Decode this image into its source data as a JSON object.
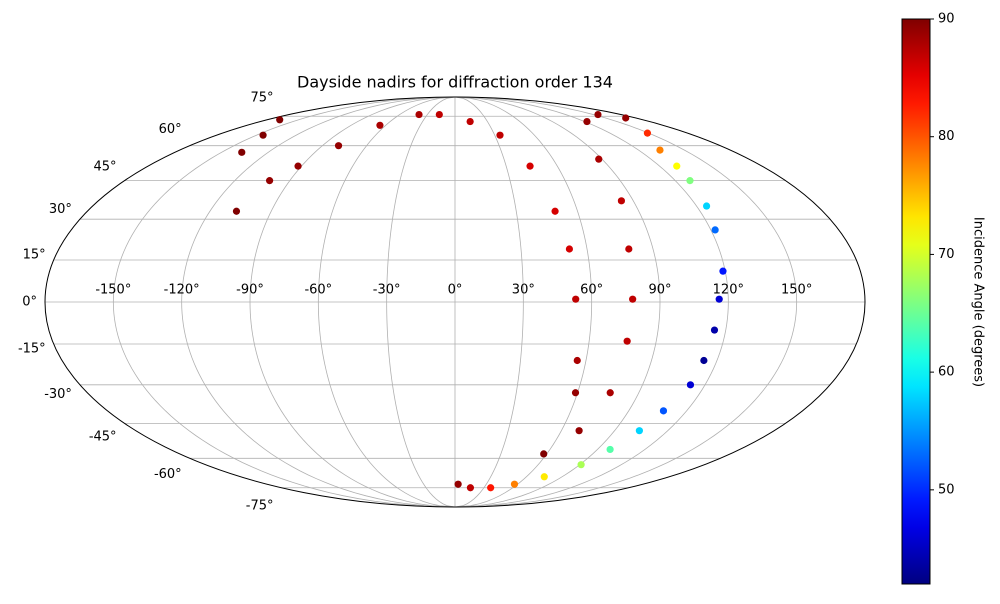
{
  "chart_data": {
    "type": "scatter",
    "projection": "mollweide",
    "grid": true,
    "colormap": "jet",
    "title": "Dayside nadirs for diffraction order 134",
    "colorbar_label": "Incidence Angle (degrees)",
    "clim": [
      42,
      90
    ],
    "cticks": [
      50,
      60,
      70,
      80,
      90
    ],
    "xlim": [
      -180,
      180
    ],
    "ylim": [
      -90,
      90
    ],
    "xticks": [
      {
        "value": -150,
        "label": "-150°"
      },
      {
        "value": -120,
        "label": "-120°"
      },
      {
        "value": -90,
        "label": "-90°"
      },
      {
        "value": -60,
        "label": "-60°"
      },
      {
        "value": -30,
        "label": "-30°"
      },
      {
        "value": 0,
        "label": "0°"
      },
      {
        "value": 30,
        "label": "30°"
      },
      {
        "value": 60,
        "label": "60°"
      },
      {
        "value": 90,
        "label": "90°"
      },
      {
        "value": 120,
        "label": "120°"
      },
      {
        "value": 150,
        "label": "150°"
      }
    ],
    "yticks": [
      {
        "value": -75,
        "label": "-75°"
      },
      {
        "value": -60,
        "label": "-60°"
      },
      {
        "value": -45,
        "label": "-45°"
      },
      {
        "value": -30,
        "label": "-30°"
      },
      {
        "value": -15,
        "label": "-15°"
      },
      {
        "value": 0,
        "label": "0°"
      },
      {
        "value": 15,
        "label": "15°"
      },
      {
        "value": 30,
        "label": "30°"
      },
      {
        "value": 45,
        "label": "45°"
      },
      {
        "value": 60,
        "label": "60°"
      },
      {
        "value": 75,
        "label": "75°"
      }
    ],
    "x": [
      -107,
      -101,
      -92,
      -79,
      -65,
      -39,
      -17,
      14,
      34,
      44,
      49,
      52,
      53,
      56,
      59,
      -137,
      -145,
      -168,
      58,
      70,
      76,
      77,
      78,
      79,
      84,
      88,
      122,
      155,
      170,
      149,
      134,
      130,
      128,
      125,
      122,
      119,
      116,
      115,
      114,
      113,
      108,
      104,
      98,
      91,
      75,
      57,
      37,
      16,
      3
    ],
    "y": [
      33,
      45,
      51,
      60,
      70,
      76,
      76,
      72,
      65,
      51,
      33,
      19,
      1,
      -21,
      -33,
      57,
      65,
      73,
      -58,
      -48,
      -33,
      -14,
      1,
      19,
      37,
      54,
      72,
      76,
      74,
      66,
      58,
      51,
      45,
      35,
      26,
      11,
      1,
      -10,
      -21,
      -30,
      -40,
      -48,
      -56,
      -63,
      -69,
      -73,
      -75,
      -75,
      -73
    ],
    "values": [
      90,
      89,
      89,
      89,
      88,
      88,
      87,
      87,
      87,
      86,
      86,
      86,
      87,
      88,
      89,
      90,
      90,
      90,
      90,
      89,
      88,
      87,
      87,
      87,
      87,
      88,
      89,
      89,
      89,
      82,
      78,
      72,
      66,
      58,
      53,
      49,
      46,
      44,
      43,
      46,
      52,
      58,
      64,
      68,
      73,
      78,
      83,
      87,
      89
    ]
  }
}
